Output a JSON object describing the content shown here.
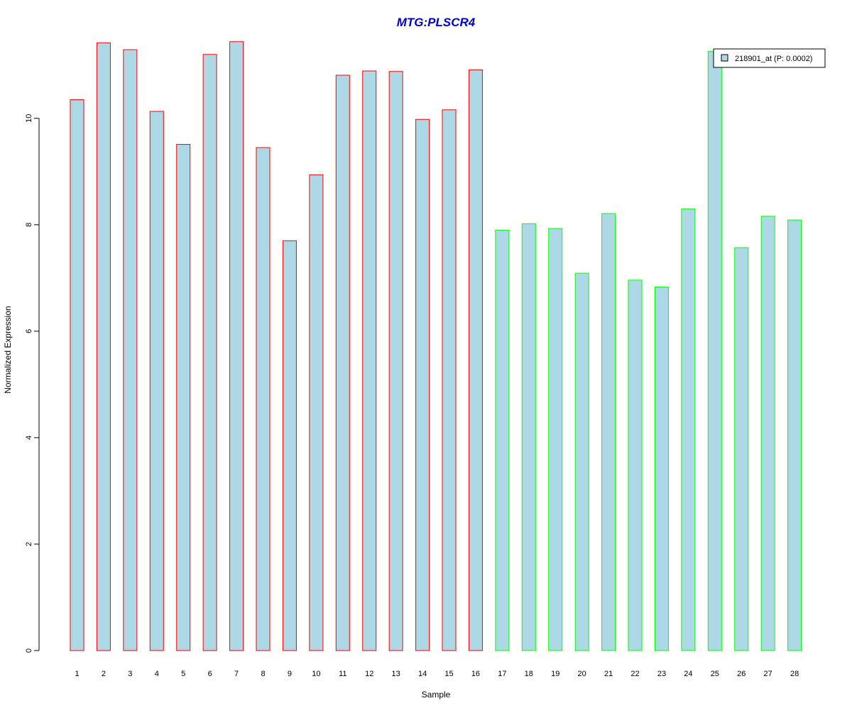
{
  "chart_data": {
    "type": "bar",
    "title": "MTG:PLSCR4",
    "xlabel": "Sample",
    "ylabel": "Normalized Expression",
    "ylim": [
      0,
      11.45
    ],
    "yticks": [
      0,
      2,
      4,
      6,
      8,
      10
    ],
    "ytick_labels": [
      "0",
      "2",
      "4",
      "6",
      "8",
      "10"
    ],
    "categories": [
      "1",
      "2",
      "3",
      "4",
      "5",
      "6",
      "7",
      "8",
      "9",
      "10",
      "11",
      "12",
      "13",
      "14",
      "15",
      "16",
      "17",
      "18",
      "19",
      "20",
      "21",
      "22",
      "23",
      "24",
      "25",
      "26",
      "27",
      "28"
    ],
    "series": [
      {
        "name": "218901_at (P: 0.0002)",
        "values": [
          10.35,
          11.42,
          11.29,
          10.13,
          9.51,
          11.2,
          11.44,
          9.45,
          7.7,
          8.94,
          10.81,
          10.89,
          10.88,
          9.98,
          10.16,
          10.91,
          7.9,
          8.02,
          7.93,
          7.09,
          8.21,
          6.96,
          6.83,
          8.3,
          11.26,
          7.57,
          8.16,
          8.09
        ],
        "fill_color": "#add8e6"
      }
    ],
    "bar_border_colors": [
      "#ff0000",
      "#ff0000",
      "#ff0000",
      "#ff0000",
      "#ff0000",
      "#ff0000",
      "#ff0000",
      "#ff0000",
      "#ff0000",
      "#ff0000",
      "#ff0000",
      "#ff0000",
      "#ff0000",
      "#ff0000",
      "#ff0000",
      "#ff0000",
      "#00ff00",
      "#00ff00",
      "#00ff00",
      "#00ff00",
      "#00ff00",
      "#00ff00",
      "#00ff00",
      "#00ff00",
      "#00ff00",
      "#00ff00",
      "#00ff00",
      "#00ff00"
    ],
    "legend": {
      "placement": "top-right",
      "entries": [
        {
          "label": "218901_at (P: 0.0002)",
          "fill_color": "#add8e6"
        }
      ]
    },
    "grid": false
  },
  "colors": {
    "title": "#0000cd",
    "axis": "#000000",
    "background": "#ffffff"
  }
}
